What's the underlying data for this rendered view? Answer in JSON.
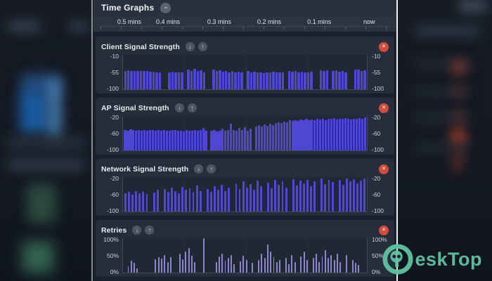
{
  "header": {
    "title": "Time Graphs"
  },
  "icons": {
    "chevron": "⌄",
    "down": "↓",
    "up": "↑",
    "close": "✕"
  },
  "timeline": {
    "labels": [
      "0.5 mins",
      "0.4 mins",
      "0.3 mins",
      "0.2 mins",
      "0.1 mins",
      "now"
    ]
  },
  "watermark": {
    "text": "eskTop",
    "color": "#5ec3a1"
  },
  "colors": {
    "bar_primary": "#4f46d4",
    "bar_retries": "#8d86ce",
    "close_button": "#d24b3d",
    "panel_card": "#262d3b",
    "accent_teal": "#5ec3a1"
  },
  "chart_data": [
    {
      "type": "bar",
      "title": "Client Signal Strength",
      "ylabel_ticks": [
        "-10",
        "-55",
        "-100"
      ],
      "ylim": [
        -100,
        -10
      ],
      "unit": "dBm",
      "bar_color": "#4f46d4",
      "values": [
        -52,
        -51,
        -52,
        -52,
        -53,
        -52,
        -53,
        -53,
        -54,
        -54,
        -55,
        -56,
        null,
        null,
        -55,
        -54,
        -55,
        -55,
        -56,
        null,
        -49,
        -52,
        -47,
        -53,
        -50,
        -55,
        null,
        null,
        -48,
        -53,
        -50,
        -54,
        -52,
        -56,
        -53,
        -55,
        -54,
        -56,
        null,
        -53,
        -55,
        -54,
        -56,
        -55,
        -57,
        -55,
        -56,
        -54,
        -55,
        -56,
        -55,
        null,
        -52,
        -54,
        -53,
        -55,
        -54,
        -56,
        -55,
        -54,
        null,
        null,
        -50,
        -52,
        -51,
        null,
        -53,
        -51,
        -54,
        -52,
        -55,
        null,
        null,
        -49,
        -48,
        -52,
        -50
      ]
    },
    {
      "type": "bar",
      "title": "AP Signal Strength",
      "ylabel_ticks": [
        "-20",
        "-60",
        "-100"
      ],
      "ylim": [
        -100,
        -20
      ],
      "unit": "dBm",
      "bar_color": "#4f46d4",
      "values": [
        -52,
        -54,
        -51,
        -53,
        -55,
        -52,
        -54,
        -53,
        -55,
        -52,
        -53,
        -54,
        -52,
        -55,
        -53,
        -54,
        -55,
        -53,
        -52,
        -54,
        -55,
        -56,
        -53,
        -55,
        -54,
        -52,
        -55,
        -53,
        -47,
        -54,
        null,
        -55,
        -53,
        -56,
        -54,
        -50,
        -55,
        -52,
        -38,
        -52,
        -54,
        -48,
        -53,
        -46,
        -55,
        -50,
        null,
        -44,
        -42,
        -45,
        -40,
        -43,
        -38,
        -41,
        -36,
        -34,
        -37,
        -33,
        -35,
        -30,
        -32,
        -29,
        -31,
        -28,
        -30,
        -27,
        -29,
        -28,
        -30,
        -26,
        -28,
        -27,
        -29,
        -26,
        -27,
        -25,
        -28,
        -26,
        -27,
        -25,
        -26,
        -28,
        -26,
        -27,
        -25,
        -26,
        -24
      ]
    },
    {
      "type": "bar",
      "title": "Network Signal Strength",
      "ylabel_ticks": [
        "-20",
        "-60",
        "-100"
      ],
      "ylim": [
        -100,
        -20
      ],
      "unit": "dBm",
      "bar_color": "#5047d2",
      "values": [
        -58,
        -55,
        -60,
        -52,
        -57,
        -54,
        -59,
        null,
        -56,
        -50,
        null,
        -48,
        -55,
        -45,
        -52,
        -57,
        -43,
        -50,
        -46,
        -55,
        -40,
        -52,
        null,
        -47,
        -55,
        -42,
        -50,
        -38,
        -53,
        -45,
        null,
        -35,
        -48,
        -30,
        -44,
        -36,
        -50,
        -28,
        -42,
        null,
        -33,
        -46,
        -26,
        -38,
        -30,
        -45,
        null,
        -25,
        -40,
        -28,
        -35,
        -26,
        -42,
        -30,
        null,
        -24,
        -36,
        -27,
        -32,
        null,
        -26,
        -38,
        -24,
        -30,
        -25,
        -35,
        -28,
        -23
      ]
    },
    {
      "type": "bar",
      "title": "Retries",
      "ylabel_ticks": [
        "100%",
        "50%",
        "0%"
      ],
      "ylim": [
        0,
        100
      ],
      "unit": "%",
      "bar_color": "#8d86ce",
      "values": [
        null,
        18,
        35,
        28,
        12,
        null,
        null,
        null,
        null,
        null,
        38,
        45,
        40,
        52,
        30,
        44,
        null,
        null,
        55,
        38,
        62,
        72,
        48,
        30,
        null,
        null,
        100,
        null,
        null,
        null,
        30,
        46,
        56,
        35,
        42,
        52,
        25,
        null,
        32,
        48,
        36,
        null,
        28,
        null,
        36,
        55,
        42,
        82,
        62,
        45,
        30,
        36,
        null,
        42,
        25,
        52,
        30,
        null,
        46,
        62,
        36,
        null,
        42,
        56,
        30,
        46,
        66,
        42,
        52,
        36,
        56,
        30,
        null,
        52,
        null,
        36,
        28,
        22,
        null,
        null
      ]
    }
  ]
}
